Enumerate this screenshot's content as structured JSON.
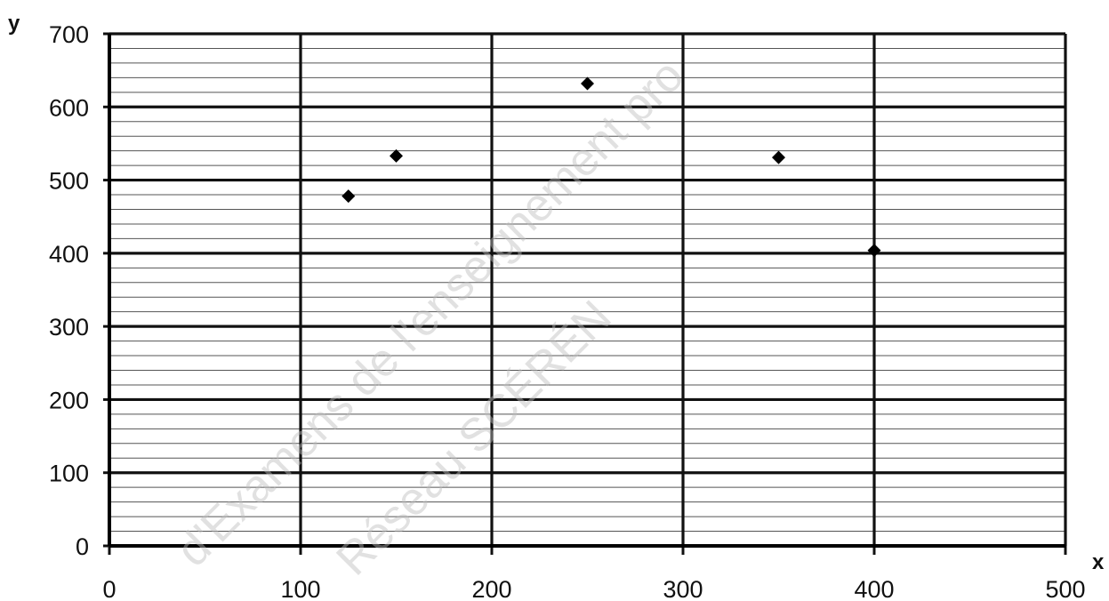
{
  "chart_data": {
    "type": "scatter",
    "xlabel": "x",
    "ylabel": "y",
    "xlim": [
      0,
      500
    ],
    "ylim": [
      0,
      700
    ],
    "x_ticks": [
      0,
      100,
      200,
      300,
      400,
      500
    ],
    "y_ticks": [
      0,
      100,
      200,
      300,
      400,
      500,
      600,
      700
    ],
    "x_tick_labels": [
      "0",
      "100",
      "200",
      "300",
      "400",
      "500"
    ],
    "y_tick_labels": [
      "0",
      "100",
      "200",
      "300",
      "400",
      "500",
      "600",
      "700"
    ],
    "grid": true,
    "y_minor_step": 20,
    "marker": "diamond",
    "marker_color": "#000000",
    "points": [
      {
        "x": 125,
        "y": 478
      },
      {
        "x": 150,
        "y": 533
      },
      {
        "x": 250,
        "y": 632
      },
      {
        "x": 350,
        "y": 531
      },
      {
        "x": 400,
        "y": 404
      }
    ]
  },
  "watermark": {
    "lines": [
      "d'Examens de l'enseignement pro",
      "Réseau SCÉRÉN"
    ]
  }
}
